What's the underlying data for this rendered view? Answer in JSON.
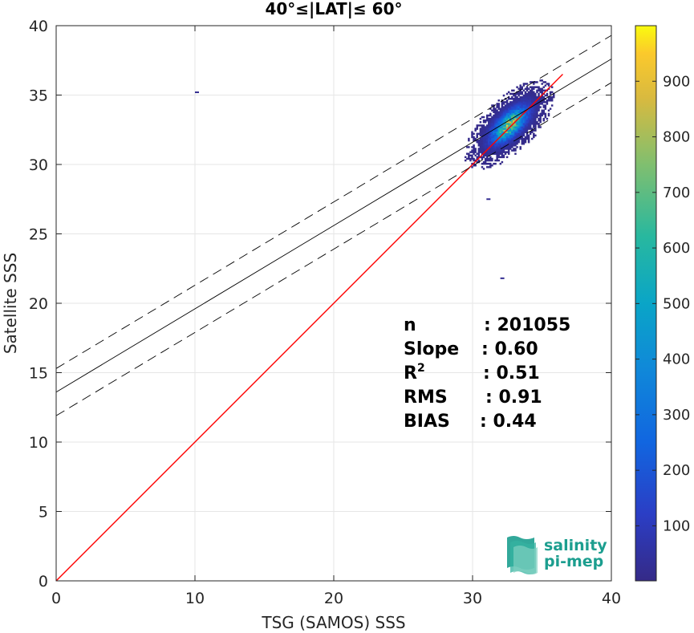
{
  "chart_data": {
    "type": "heatmap",
    "title": "40°≤|LAT|≤ 60°",
    "xlabel": "TSG (SAMOS) SSS",
    "ylabel": "Satellite SSS",
    "xlim": [
      0,
      40
    ],
    "ylim": [
      0,
      40
    ],
    "xticks": [
      0,
      10,
      20,
      30,
      40
    ],
    "yticks": [
      0,
      5,
      10,
      15,
      20,
      25,
      30,
      35,
      40
    ],
    "grid": true,
    "colorbar": {
      "range": [
        1,
        1000
      ],
      "ticks": [
        100,
        200,
        300,
        400,
        500,
        600,
        700,
        800,
        900
      ],
      "colormap": "parula"
    },
    "lines": [
      {
        "kind": "identity",
        "color": "#ff0000",
        "points": [
          [
            0,
            0
          ],
          [
            36.5,
            36.5
          ]
        ]
      },
      {
        "kind": "regression",
        "color": "#000000",
        "dash": false,
        "intercept": 13.6,
        "slope": 0.6,
        "x_range": [
          0,
          40
        ]
      },
      {
        "kind": "regression-upper",
        "color": "#000000",
        "dash": true,
        "intercept": 15.3,
        "slope": 0.6,
        "x_range": [
          0,
          40
        ]
      },
      {
        "kind": "regression-lower",
        "color": "#000000",
        "dash": true,
        "intercept": 11.9,
        "slope": 0.6,
        "x_range": [
          0,
          40
        ]
      }
    ],
    "density_cloud": {
      "center": [
        32.6,
        32.8
      ],
      "x_range": [
        27.5,
        37.5
      ],
      "y_range": [
        27.0,
        36.3
      ],
      "peak_count": 850,
      "outliers": [
        [
          31.0,
          27.5
        ],
        [
          32.0,
          21.8
        ],
        [
          10.0,
          35.2
        ]
      ]
    },
    "stats": [
      {
        "label": "n",
        "value": ": 201055"
      },
      {
        "label": "Slope",
        "value": ": 0.60"
      },
      {
        "label": "R",
        "sup": "2",
        "value": ": 0.51"
      },
      {
        "label": "RMS",
        "value": ": 0.91"
      },
      {
        "label": "BIAS",
        "value": ": 0.44"
      }
    ]
  },
  "logo": {
    "line1": "salinity",
    "line2": "pi-mep"
  },
  "colors": {
    "identity": "#ff0000",
    "regression": "#000000",
    "logo": "#1c9e8f"
  }
}
